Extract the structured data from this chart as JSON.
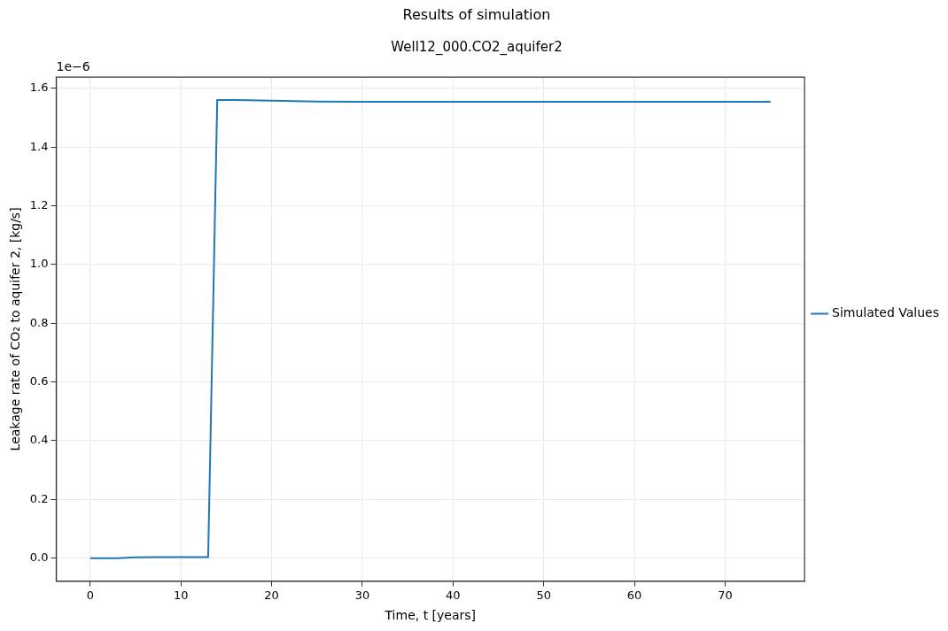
{
  "chart_data": {
    "type": "line",
    "title": "Results of simulation",
    "subtitle": "Well12_000.CO2_aquifer2",
    "xlabel": "Time, t [years]",
    "ylabel": "Leakage rate of CO₂ to aquifer 2, [kg/s]",
    "annotations": [
      "1e−6"
    ],
    "x": [
      0,
      3,
      5,
      8,
      10,
      13,
      14,
      16,
      20,
      25,
      30,
      40,
      50,
      60,
      70,
      75
    ],
    "series": [
      {
        "name": "Simulated Values",
        "color": "#1f77b4",
        "values": [
          0,
          0,
          0.003,
          0.004,
          0.004,
          0.004,
          1.56,
          1.56,
          1.558,
          1.555,
          1.554,
          1.554,
          1.554,
          1.554,
          1.554,
          1.554
        ]
      }
    ],
    "xlim": [
      -3.75,
      78.75
    ],
    "ylim": [
      -0.078,
      1.638
    ],
    "xticks": [
      0,
      10,
      20,
      30,
      40,
      50,
      60,
      70
    ],
    "yticks": [
      {
        "value": 0,
        "label": "0.0"
      },
      {
        "value": 0.2,
        "label": "0.2"
      },
      {
        "value": 0.4,
        "label": "0.4"
      },
      {
        "value": 0.6,
        "label": "0.6"
      },
      {
        "value": 0.8,
        "label": "0.8"
      },
      {
        "value": 1,
        "label": "1.0"
      },
      {
        "value": 1.2,
        "label": "1.2"
      },
      {
        "value": 1.4,
        "label": "1.4"
      },
      {
        "value": 1.6,
        "label": "1.6"
      }
    ],
    "grid": true,
    "legend": "right"
  }
}
